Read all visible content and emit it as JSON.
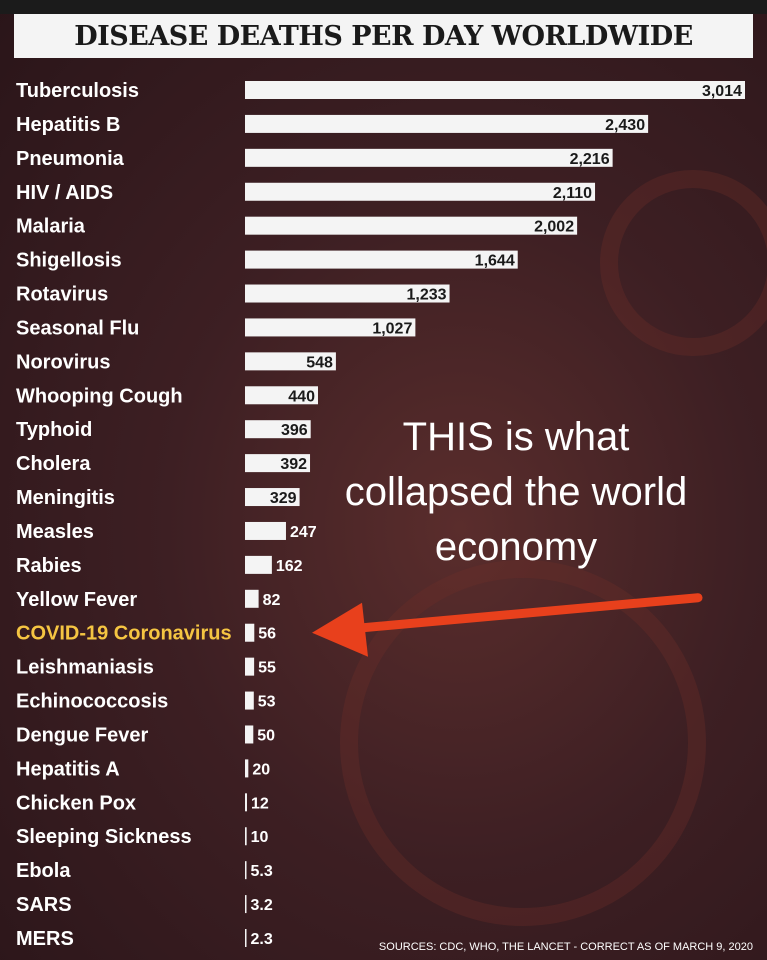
{
  "title": "DISEASE DEATHS PER DAY WORLDWIDE",
  "annotation": {
    "lines": [
      "THIS is what",
      "collapsed the world",
      "economy"
    ]
  },
  "sources": "SOURCES: CDC, WHO, THE LANCET - CORRECT AS OF MARCH 9, 2020",
  "colors": {
    "bar": "#f4f4f4",
    "highlight_label": "#f5c542",
    "arrow": "#e8401c",
    "background": "#3d1f23"
  },
  "chart_data": {
    "type": "bar",
    "orientation": "horizontal",
    "highlight": "COVID-19 Coronavirus",
    "categories": [
      "Tuberculosis",
      "Hepatitis B",
      "Pneumonia",
      "HIV / AIDS",
      "Malaria",
      "Shigellosis",
      "Rotavirus",
      "Seasonal Flu",
      "Norovirus",
      "Whooping Cough",
      "Typhoid",
      "Cholera",
      "Meningitis",
      "Measles",
      "Rabies",
      "Yellow Fever",
      "COVID-19 Coronavirus",
      "Leishmaniasis",
      "Echinococcosis",
      "Dengue Fever",
      "Hepatitis A",
      "Chicken Pox",
      "Sleeping Sickness",
      "Ebola",
      "SARS",
      "MERS"
    ],
    "values": [
      3014,
      2430,
      2216,
      2110,
      2002,
      1644,
      1233,
      1027,
      548,
      440,
      396,
      392,
      329,
      247,
      162,
      82,
      56,
      55,
      53,
      50,
      20,
      12,
      10,
      5.3,
      3.2,
      2.3
    ],
    "value_labels": [
      "3,014",
      "2,430",
      "2,216",
      "2,110",
      "2,002",
      "1,644",
      "1,233",
      "1,027",
      "548",
      "440",
      "396",
      "392",
      "329",
      "247",
      "162",
      "82",
      "56",
      "55",
      "53",
      "50",
      "20",
      "12",
      "10",
      "5.3",
      "3.2",
      "2.3"
    ],
    "xlim": [
      0,
      3014
    ],
    "grid": false,
    "legend": "none"
  }
}
